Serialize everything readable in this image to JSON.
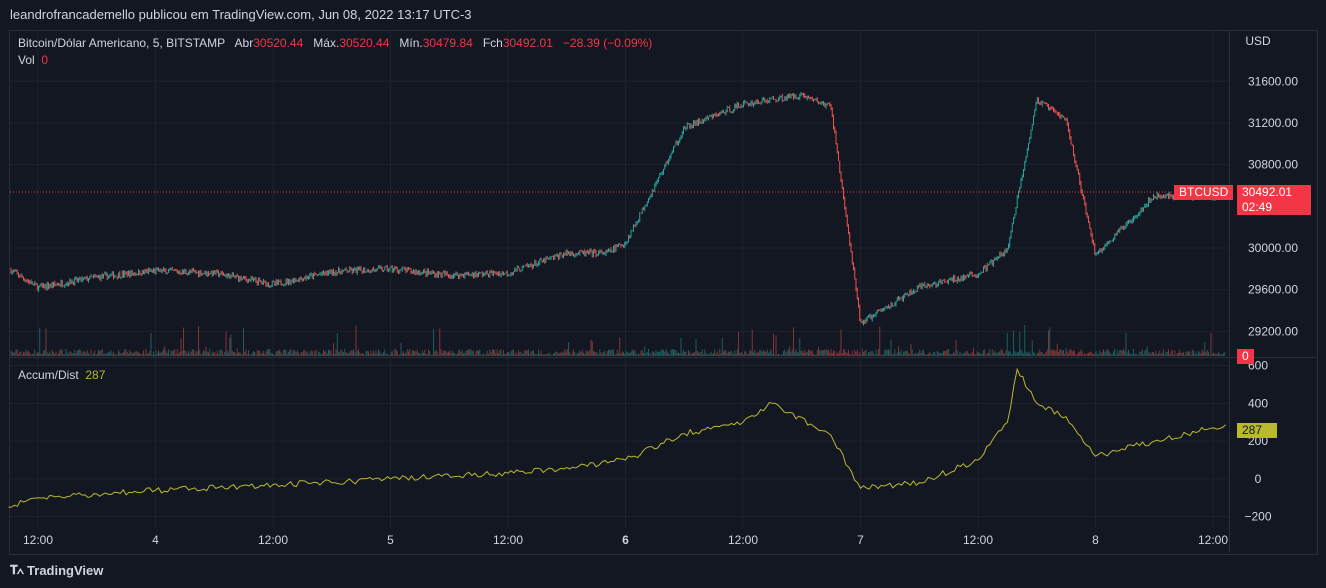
{
  "header": {
    "published": "leandrofrancademello publicou em TradingView.com, Jun 08, 2022 13:17 UTC-3"
  },
  "legend": {
    "symbol": "Bitcoin/Dólar Americano, 5, BITSTAMP",
    "open_label": "Abr",
    "open": "30520.44",
    "high_label": "Máx.",
    "high": "30520.44",
    "low_label": "Mín.",
    "low": "30479.84",
    "close_label": "Fch",
    "close": "30492.01",
    "change": "−28.39 (−0.09%)",
    "vol_label": "Vol",
    "vol": "0"
  },
  "indicator": {
    "name": "Accum/Dist",
    "value": "287"
  },
  "price_tag": {
    "symbol": "BTCUSD",
    "price": "30492.01",
    "countdown": "02:49"
  },
  "volume_tag": "0",
  "footer": {
    "brand": "TradingView"
  },
  "colors": {
    "up": "#26a69a",
    "down": "#ef5350",
    "ad_line": "#b9b92e",
    "grid": "#1e222d",
    "background": "#131722"
  },
  "chart_data": [
    {
      "type": "line",
      "title": "Bitcoin/Dólar Americano, 5, BITSTAMP",
      "ylabel": "USD",
      "y_ticks": [
        31600,
        31200,
        30800,
        30000,
        29600,
        29200
      ],
      "ylim": [
        29050,
        31900
      ],
      "x_ticks": [
        "12:00",
        "4",
        "12:00",
        "5",
        "12:00",
        "6",
        "12:00",
        "7",
        "12:00",
        "8",
        "12:00"
      ],
      "x": [
        "06-03 09:00",
        "06-03 12:00",
        "06-03 18:00",
        "06-04 00:00",
        "06-04 06:00",
        "06-04 12:00",
        "06-04 18:00",
        "06-05 00:00",
        "06-05 06:00",
        "06-05 12:00",
        "06-05 18:00",
        "06-05 22:00",
        "06-06 00:00",
        "06-06 06:00",
        "06-06 12:00",
        "06-06 18:00",
        "06-06 21:00",
        "06-07 00:00",
        "06-07 06:00",
        "06-07 12:00",
        "06-07 15:00",
        "06-07 18:00",
        "06-07 21:00",
        "06-08 00:00",
        "06-08 06:00",
        "06-08 13:17"
      ],
      "close": [
        29800,
        29620,
        29720,
        29780,
        29760,
        29650,
        29770,
        29800,
        29740,
        29760,
        29950,
        29950,
        30050,
        31150,
        31380,
        31470,
        31350,
        29280,
        29620,
        29750,
        29980,
        31420,
        31230,
        29930,
        30500,
        30492
      ],
      "last_price": 30492.01,
      "candles": "5-minute OHLC candlesticks (up #26a69a, down #ef5350) with volume histogram at bottom of price pane"
    },
    {
      "type": "line",
      "name": "Accum/Dist",
      "y_ticks": [
        600,
        400,
        200,
        0,
        -200
      ],
      "ylim": [
        -260,
        640
      ],
      "x": [
        "06-03 09:00",
        "06-03 12:00",
        "06-03 18:00",
        "06-04 00:00",
        "06-04 12:00",
        "06-04 18:00",
        "06-05 00:00",
        "06-05 12:00",
        "06-05 18:00",
        "06-06 00:00",
        "06-06 06:00",
        "06-06 12:00",
        "06-06 15:00",
        "06-06 21:00",
        "06-07 00:00",
        "06-07 06:00",
        "06-07 12:00",
        "06-07 15:00",
        "06-07 16:00",
        "06-07 18:00",
        "06-07 21:00",
        "06-08 00:00",
        "06-08 06:00",
        "06-08 13:17"
      ],
      "values": [
        -150,
        -100,
        -80,
        -60,
        -30,
        -20,
        0,
        30,
        60,
        100,
        240,
        300,
        400,
        230,
        -50,
        -20,
        100,
        300,
        580,
        400,
        330,
        120,
        200,
        287
      ],
      "last_value": 287
    }
  ]
}
